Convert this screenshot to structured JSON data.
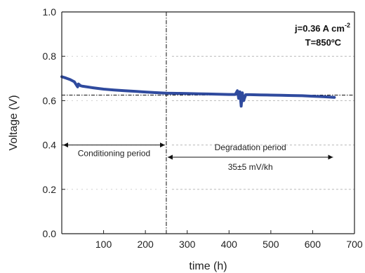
{
  "chart_data": {
    "type": "line",
    "title": "",
    "xlabel": "time (h)",
    "ylabel": "Voltage (V)",
    "xlim": [
      0,
      700
    ],
    "ylim": [
      0.0,
      1.0
    ],
    "x_ticks": [
      100,
      200,
      300,
      400,
      500,
      600,
      700
    ],
    "y_ticks": [
      0.0,
      0.2,
      0.4,
      0.6,
      0.8,
      1.0
    ],
    "x_tick_labels": [
      "100",
      "200",
      "300",
      "400",
      "500",
      "600",
      "700"
    ],
    "y_tick_labels": [
      "0.0",
      "0.2",
      "0.4",
      "0.6",
      "0.8",
      "1.0"
    ],
    "grid": "dotted horizontal at 0.2, 0.4, 0.6, 0.8 (right of divider)",
    "series": [
      {
        "color": "#2f4a9e",
        "x": [
          0,
          10,
          20,
          30,
          38,
          40,
          45,
          50,
          75,
          100,
          125,
          150,
          175,
          200,
          225,
          250,
          275,
          300,
          325,
          350,
          375,
          400,
          415,
          420,
          423,
          426,
          429,
          432,
          435,
          440,
          450,
          475,
          500,
          525,
          550,
          575,
          600,
          625,
          652
        ],
        "y": [
          0.708,
          0.702,
          0.695,
          0.685,
          0.662,
          0.675,
          0.667,
          0.665,
          0.658,
          0.652,
          0.648,
          0.645,
          0.642,
          0.639,
          0.636,
          0.634,
          0.633,
          0.632,
          0.631,
          0.63,
          0.629,
          0.628,
          0.628,
          0.645,
          0.61,
          0.64,
          0.575,
          0.635,
          0.6,
          0.627,
          0.627,
          0.626,
          0.625,
          0.624,
          0.623,
          0.622,
          0.62,
          0.618,
          0.615
        ]
      }
    ],
    "reference_lines": {
      "vertical_x": 250,
      "horizontal_y": 0.625
    },
    "annotations": {
      "condition": "j=0.36 A cm",
      "condition_sup": "-2",
      "temperature": "T=850ºC",
      "conditioning": "Conditioning period",
      "degradation": "Degradation period",
      "rate": "35±5 mV/kh"
    },
    "arrows": {
      "conditioning": {
        "y": 0.4,
        "x_from": 0,
        "x_to": 250
      },
      "degradation": {
        "y": 0.345,
        "x_from": 250,
        "x_to": 652
      }
    }
  }
}
